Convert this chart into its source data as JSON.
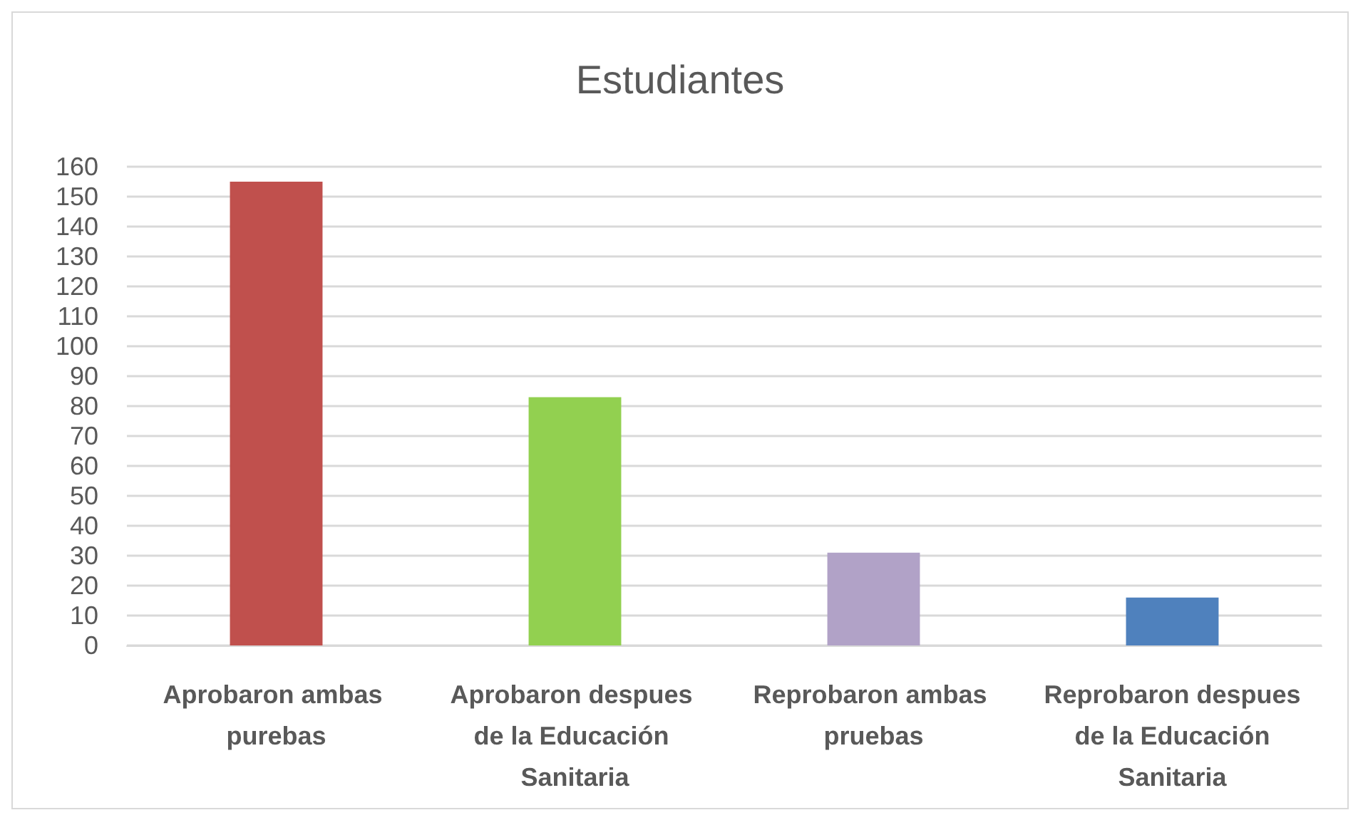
{
  "chart_data": {
    "type": "bar",
    "title": "Estudiantes",
    "categories": [
      "Aprobaron ambas purebas",
      "Aprobaron despues de la Educación Sanitaria",
      "Reprobaron ambas pruebas",
      "Reprobaron despues de la Educación Sanitaria"
    ],
    "values": [
      155,
      83,
      31,
      16
    ],
    "colors": [
      "#c0504d",
      "#92d050",
      "#b1a2c7",
      "#4f81bd"
    ],
    "ylim": [
      0,
      160
    ],
    "yticks": [
      0,
      10,
      20,
      30,
      40,
      50,
      60,
      70,
      80,
      90,
      100,
      110,
      120,
      130,
      140,
      150,
      160
    ],
    "grid": "y"
  }
}
